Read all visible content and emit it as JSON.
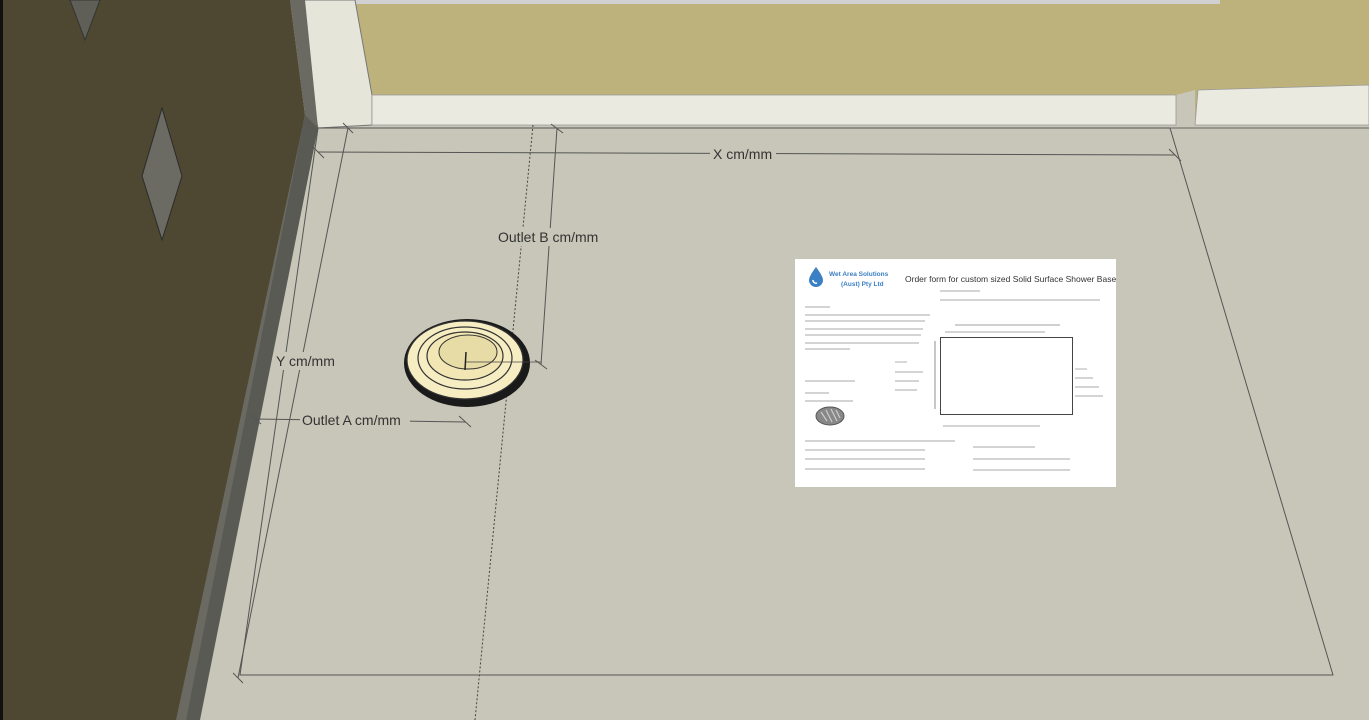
{
  "dimension_labels": {
    "x": "X cm/mm",
    "y": "Y cm/mm",
    "outlet_a": "Outlet A cm/mm",
    "outlet_b": "Outlet B cm/mm"
  },
  "colors": {
    "floor": "#c7c6b8",
    "wall_left": "#4e4832",
    "wall_back": "#bdb27c",
    "skirting": "#e5e5da",
    "dimension_line": "#555555",
    "outlet_rim": "#1a1a1a",
    "outlet_fill": "#f6edc2",
    "logo_blue": "#3b7fc4"
  },
  "order_form": {
    "company_line1": "Wet Area Solutions",
    "company_line2": "(Aust) Pty Ltd",
    "title": "Order form for custom sized Solid Surface Shower Base"
  }
}
